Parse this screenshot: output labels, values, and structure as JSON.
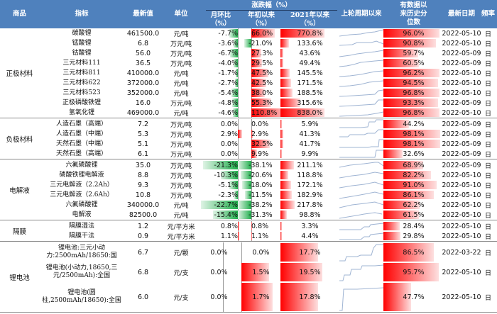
{
  "header": {
    "product": "商品",
    "indicator": "指标",
    "latest_value": "最新值",
    "unit": "单位",
    "change_group": "涨跌幅（%）",
    "mom": "月环比",
    "mom_pct": "（%）",
    "ytd": "年初以来",
    "ytd_pct": "（%）",
    "since2021": "2021年以来",
    "since2021_pct": "（%）",
    "since_cycle": "上轮周期以来",
    "percentile_l1": "有数据以",
    "percentile_l2": "来历史分",
    "percentile_l3": "位数",
    "latest_date": "最新日期",
    "frequency": "频率"
  },
  "colors": {
    "header_bg": "#4f81bd",
    "negative_bar": "#1fae4b",
    "positive_bar": "#ff0000"
  },
  "groups": [
    {
      "label": "正极材料",
      "rows": [
        {
          "name": "碳酸锂",
          "value": "461500.0",
          "unit": "元/吨",
          "mom": "-7.7%",
          "ytd": "66.0%",
          "y21": "770.8%",
          "pct": "96.0%",
          "date": "2022-05-10",
          "freq": "日"
        },
        {
          "name": "锰酸锂",
          "value": "6.8",
          "unit": "万元/吨",
          "mom": "-3.6%",
          "ytd": "-21.0%",
          "y21": "133.6%",
          "pct": "90.8%",
          "date": "2022-05-10",
          "freq": "日"
        },
        {
          "name": "钴酸锂",
          "value": "56.0",
          "unit": "万元/吨",
          "mom": "-6.7%",
          "ytd": "27.3%",
          "y21": "43.6%",
          "pct": "59.7%",
          "date": "2022-05-09",
          "freq": "日"
        },
        {
          "name": "三元材料111",
          "value": "36.5",
          "unit": "万元/吨",
          "mom": "-4.0%",
          "ytd": "29.5%",
          "y21": "49.4%",
          "pct": "60.5%",
          "date": "2022-05-09",
          "freq": "日"
        },
        {
          "name": "三元材料811",
          "value": "410000.0",
          "unit": "元/吨",
          "mom": "-1.7%",
          "ytd": "47.5%",
          "y21": "145.5%",
          "pct": "96.2%",
          "date": "2022-05-10",
          "freq": "日"
        },
        {
          "name": "三元材料622",
          "value": "372000.0",
          "unit": "元/吨",
          "mom": "-2.7%",
          "ytd": "42.5%",
          "y21": "171.5%",
          "pct": "94.5%",
          "date": "2022-05-10",
          "freq": "日"
        },
        {
          "name": "三元材料523",
          "value": "352000.0",
          "unit": "元/吨",
          "mom": "-5.4%",
          "ytd": "38.0%",
          "y21": "188.5%",
          "pct": "96.8%",
          "date": "2022-05-10",
          "freq": "日"
        },
        {
          "name": "正极磷酸铁锂",
          "value": "16.0",
          "unit": "万元/吨",
          "mom": "-4.8%",
          "ytd": "55.3%",
          "y21": "315.6%",
          "pct": "93.3%",
          "date": "2022-05-09",
          "freq": "日"
        },
        {
          "name": "氢氧化锂",
          "value": "469000.0",
          "unit": "元/吨",
          "mom": "-4.6%",
          "ytd": "110.8%",
          "y21": "838.0%",
          "pct": "96.8%",
          "date": "2022-05-10",
          "freq": "日"
        }
      ]
    },
    {
      "label": "负极材料",
      "rows": [
        {
          "name": "人造石墨（高端）",
          "value": "7.2",
          "unit": "万元/吨",
          "mom": "0.0%",
          "ytd": "0.0%",
          "y21": "5.9%",
          "pct": "44.2%",
          "date": "2022-05-09",
          "freq": "日"
        },
        {
          "name": "人造石墨（中端）",
          "value": "5.3",
          "unit": "万元/吨",
          "mom": "2.9%",
          "ytd": "2.9%",
          "y21": "41.3%",
          "pct": "98.1%",
          "date": "2022-05-09",
          "freq": "日"
        },
        {
          "name": "天然石墨（中端）",
          "value": "5.1",
          "unit": "万元/吨",
          "mom": "0.0%",
          "ytd": "32.5%",
          "y21": "41.7%",
          "pct": "98.1%",
          "date": "2022-05-09",
          "freq": "日"
        },
        {
          "name": "天然石墨（高端）",
          "value": "6.1",
          "unit": "万元/吨",
          "mom": "0.0%",
          "ytd": "9.9%",
          "y21": "9.9%",
          "pct": "32.6%",
          "date": "2022-05-09",
          "freq": "日"
        }
      ]
    },
    {
      "label": "电解液",
      "rows": [
        {
          "name": "六氟磷酸锂",
          "value": "35.0",
          "unit": "万元/吨",
          "mom": "-21.3%",
          "ytd": "-38.1%",
          "y21": "211.1%",
          "pct": "68.9%",
          "date": "2022-05-09",
          "freq": "日"
        },
        {
          "name": "磷酸铁锂电解液",
          "value": "8.8",
          "unit": "万元/吨",
          "mom": "-10.3%",
          "ytd": "-20.6%",
          "y21": "118.8%",
          "pct": "82.2%",
          "date": "2022-05-10",
          "freq": "日"
        },
        {
          "name": "三元电解液（2.2Ah）",
          "value": "9.3",
          "unit": "万元/吨",
          "mom": "-5.1%",
          "ytd": "-18.0%",
          "y21": "172.1%",
          "pct": "91.0%",
          "date": "2022-05-10",
          "freq": "日"
        },
        {
          "name": "三元电解液（2.6Ah）",
          "value": "10.8",
          "unit": "万元/吨",
          "mom": "-2.3%",
          "ytd": "-11.5%",
          "y21": "182.9%",
          "pct": "86.1%",
          "date": "2022-05-10",
          "freq": "日"
        },
        {
          "name": "六氟磷酸锂",
          "value": "340000.0",
          "unit": "元/吨",
          "mom": "-22.7%",
          "ytd": "-38.2%",
          "y21": "217.8%",
          "pct": "62.2%",
          "date": "2022-05-10",
          "freq": "日"
        },
        {
          "name": "电解液",
          "value": "82500.0",
          "unit": "元/吨",
          "mom": "-15.4%",
          "ytd": "-31.3%",
          "y21": "98.8%",
          "pct": "61.5%",
          "date": "2022-05-10",
          "freq": "日"
        }
      ]
    },
    {
      "label": "隔膜",
      "rows": [
        {
          "name": "隔膜湿法",
          "value": "1.2",
          "unit": "元/平方米",
          "mom": "0.8%",
          "ytd": "0.8%",
          "y21": "3.3%",
          "pct": "28.4%",
          "date": "2022-05-10",
          "freq": "日"
        },
        {
          "name": "隔膜干法",
          "value": "0.9",
          "unit": "元/平方米",
          "mom": "1.1%",
          "ytd": "1.1%",
          "y21": "4.4%",
          "pct": "29.8%",
          "date": "2022-05-10",
          "freq": "日"
        }
      ]
    },
    {
      "label": "锂电池",
      "rows": [
        {
          "name": "锂电池:三元小动力:2500mAh/18650:国",
          "value": "6.7",
          "unit": "元/颗",
          "mom": "0.0%",
          "ytd": "0.0%",
          "y21": "17.7%",
          "pct": "86.5%",
          "date": "2022-03-22",
          "freq": "日"
        },
        {
          "name": "锂电池(小动力,18650,三元/2500mAh):全国",
          "value": "6.8",
          "unit": "元/支",
          "mom": "0.0%",
          "ytd": "1.5%",
          "y21": "19.5%",
          "pct": "95.7%",
          "date": "2022-05-10",
          "freq": "日"
        },
        {
          "name": "锂电池(圆柱,2500mAh/18650):全国",
          "value": "6.0",
          "unit": "元/支",
          "mom": "0.0%",
          "ytd": "1.7%",
          "y21": "17.8%",
          "pct": "47.7%",
          "date": "2022-05-10",
          "freq": "日"
        }
      ]
    }
  ]
}
